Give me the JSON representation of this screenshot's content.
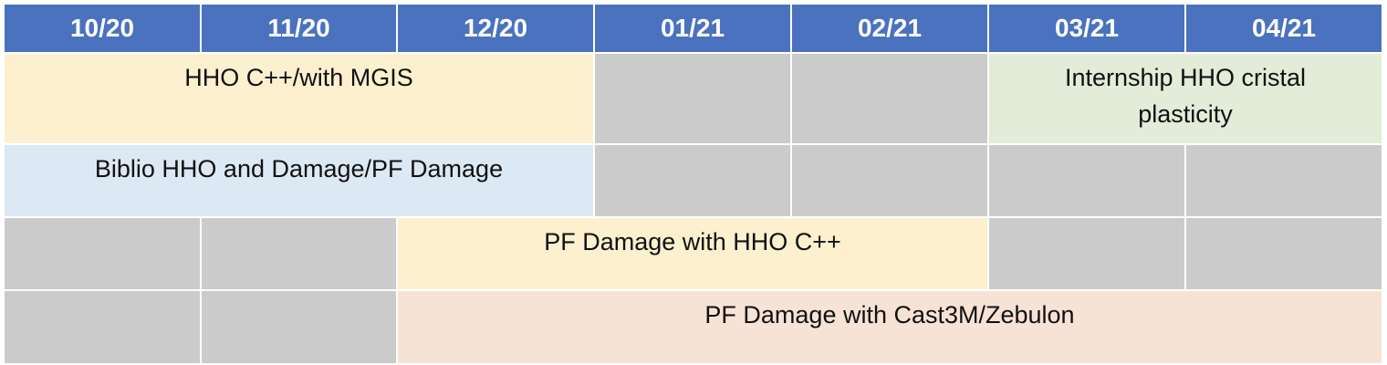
{
  "months": [
    "10/20",
    "11/20",
    "12/20",
    "01/21",
    "02/21",
    "03/21",
    "04/21"
  ],
  "tasks": {
    "hho_cpp_mgis": "HHO C++/with MGIS",
    "internship": "Internship HHO cristal plasticity",
    "biblio": "Biblio HHO and Damage/PF Damage",
    "pf_damage_hho": "PF Damage with HHO C++",
    "pf_damage_cast3m": "PF Damage with Cast3M/Zebulon"
  },
  "colors": {
    "header": "#4a72bf",
    "empty": "#cccbcc",
    "hho_cpp_mgis": "#fcf0cf",
    "internship": "#e2ecd8",
    "biblio": "#dde8f5",
    "pf_damage_hho": "#fcf0cf",
    "pf_damage_cast3m": "#f7e3d6"
  }
}
